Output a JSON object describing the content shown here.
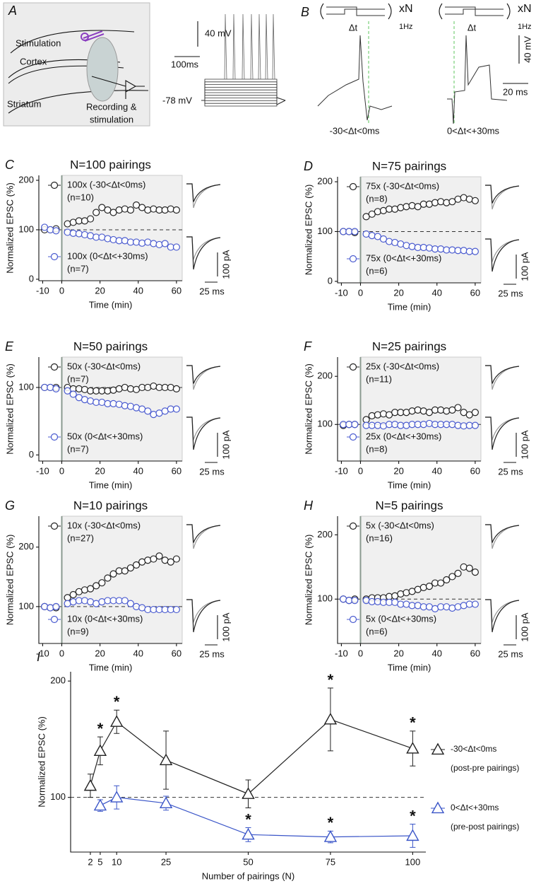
{
  "panel_a": {
    "label": "A",
    "stimulation": "Stimulation",
    "cortex": "Cortex",
    "striatum": "Striatum",
    "recording": "Recording &",
    "recording_2": "stimulation",
    "scale_mv": "40 mV",
    "scale_ms": "100ms",
    "rest": "-78 mV"
  },
  "panel_b": {
    "label": "B",
    "scale_mv": "40 mV",
    "scale_ms": "20 ms",
    "protocols": [
      {
        "repeat": "xN",
        "freq": "1Hz",
        "dt": "Δt",
        "window": "-30<Δt<0ms"
      },
      {
        "repeat": "xN",
        "freq": "1Hz",
        "dt": "Δt",
        "window": "0<Δt<+30ms"
      }
    ]
  },
  "chart_data": [
    {
      "type": "scatter",
      "panel": "C",
      "title": "N=100 pairings",
      "xlabel": "Time (min)",
      "ylabel": "Normalized EPSC (%)",
      "scale_labels": [
        "100 pA",
        "25 ms"
      ],
      "xlim": [
        -12,
        63
      ],
      "xticks": [
        -10,
        0,
        20,
        40,
        60
      ],
      "ylim": [
        -3,
        210
      ],
      "yticks": [
        0,
        100,
        200
      ],
      "baseline": 100,
      "x": [
        -9,
        -6,
        -3,
        3,
        6,
        9,
        12,
        15,
        18,
        21,
        24,
        27,
        30,
        33,
        36,
        39,
        42,
        45,
        48,
        51,
        54,
        57,
        60
      ],
      "series": [
        {
          "name": "100x (-30<Δt<0ms)",
          "n_label": "(n=10)",
          "color": "#222222",
          "values": [
            100,
            100,
            102,
            112,
            115,
            118,
            118,
            122,
            135,
            145,
            140,
            135,
            140,
            142,
            140,
            150,
            145,
            140,
            142,
            140,
            140,
            142,
            140
          ]
        },
        {
          "name": "100x (0<Δt<+30ms)",
          "n_label": "(n=7)",
          "color": "#4a5bd0",
          "values": [
            105,
            100,
            98,
            95,
            93,
            92,
            90,
            88,
            85,
            85,
            82,
            80,
            78,
            78,
            75,
            75,
            73,
            75,
            72,
            70,
            72,
            65,
            65
          ]
        }
      ]
    },
    {
      "type": "scatter",
      "panel": "D",
      "title": "N=75 pairings",
      "xlabel": "Time (min)",
      "ylabel": "Normalized EPSC (%)",
      "scale_labels": [
        "100 pA",
        "25 ms"
      ],
      "xlim": [
        -12,
        63
      ],
      "xticks": [
        -10,
        0,
        20,
        40,
        60
      ],
      "ylim": [
        -3,
        210
      ],
      "yticks": [
        0,
        100,
        200
      ],
      "baseline": 100,
      "x": [
        -9,
        -6,
        -3,
        3,
        6,
        9,
        12,
        15,
        18,
        21,
        24,
        27,
        30,
        33,
        36,
        39,
        42,
        45,
        48,
        51,
        54,
        57,
        60
      ],
      "series": [
        {
          "name": "75x (-30<Δt<0ms)",
          "n_label": "(n=8)",
          "color": "#222222",
          "values": [
            100,
            100,
            98,
            130,
            135,
            140,
            142,
            145,
            145,
            148,
            150,
            152,
            150,
            155,
            155,
            158,
            160,
            158,
            160,
            165,
            168,
            165,
            162
          ]
        },
        {
          "name": "75x (0<Δt<+30ms)",
          "n_label": "(n=6)",
          "color": "#4a5bd0",
          "values": [
            100,
            100,
            100,
            95,
            92,
            90,
            85,
            80,
            78,
            75,
            72,
            70,
            68,
            68,
            67,
            65,
            65,
            63,
            63,
            62,
            62,
            60,
            60
          ]
        }
      ]
    },
    {
      "type": "scatter",
      "panel": "E",
      "title": "N=50 pairings",
      "xlabel": "Time (min)",
      "ylabel": "Normalized EPSC (%)",
      "scale_labels": [
        "100 pA",
        "25 ms"
      ],
      "xlim": [
        -12,
        63
      ],
      "xticks": [
        -10,
        0,
        20,
        40,
        60
      ],
      "ylim": [
        -9,
        145
      ],
      "yticks": [
        0,
        100
      ],
      "baseline": 100,
      "x": [
        -9,
        -6,
        -3,
        3,
        6,
        9,
        12,
        15,
        18,
        21,
        24,
        27,
        30,
        33,
        36,
        39,
        42,
        45,
        48,
        51,
        54,
        57,
        60
      ],
      "series": [
        {
          "name": "50x (-30<Δt<0ms)",
          "n_label": "(n=7)",
          "color": "#222222",
          "values": [
            100,
            100,
            100,
            100,
            98,
            98,
            97,
            95,
            95,
            95,
            95,
            96,
            98,
            100,
            98,
            97,
            100,
            100,
            102,
            100,
            100,
            100,
            98
          ]
        },
        {
          "name": "50x (0<Δt<+30ms)",
          "n_label": "(n=7)",
          "color": "#4a5bd0",
          "values": [
            100,
            100,
            98,
            95,
            90,
            85,
            82,
            80,
            78,
            78,
            76,
            76,
            75,
            73,
            72,
            70,
            68,
            65,
            60,
            62,
            65,
            68,
            68
          ]
        }
      ]
    },
    {
      "type": "scatter",
      "panel": "F",
      "title": "N=25 pairings",
      "xlabel": "Time (min)",
      "ylabel": "Normalized EPSC (%)",
      "scale_labels": [
        "100 pA",
        "25 ms"
      ],
      "xlim": [
        -12,
        63
      ],
      "xticks": [
        -10,
        0,
        20,
        40,
        60
      ],
      "ylim": [
        24,
        240
      ],
      "yticks": [
        100,
        200
      ],
      "baseline": 100,
      "x": [
        -9,
        -6,
        -3,
        3,
        6,
        9,
        12,
        15,
        18,
        21,
        24,
        27,
        30,
        33,
        36,
        39,
        42,
        45,
        48,
        51,
        54,
        57,
        60
      ],
      "series": [
        {
          "name": "25x (-30<Δt<0ms)",
          "n_label": "(n=11)",
          "color": "#222222",
          "values": [
            98,
            100,
            100,
            110,
            118,
            120,
            122,
            120,
            125,
            125,
            125,
            128,
            130,
            128,
            125,
            130,
            130,
            128,
            130,
            135,
            125,
            120,
            125
          ]
        },
        {
          "name": "25x (0<Δt<+30ms)",
          "n_label": "(n=8)",
          "color": "#4a5bd0",
          "values": [
            100,
            100,
            100,
            98,
            98,
            98,
            97,
            100,
            100,
            98,
            98,
            100,
            100,
            100,
            102,
            100,
            100,
            100,
            100,
            98,
            97,
            98,
            98
          ]
        }
      ]
    },
    {
      "type": "scatter",
      "panel": "G",
      "title": "N=10 pairings",
      "xlabel": "Time (min)",
      "ylabel": "Normalized EPSC (%)",
      "scale_labels": [
        "100 pA",
        "25 ms"
      ],
      "xlim": [
        -12,
        63
      ],
      "xticks": [
        -10,
        0,
        20,
        40,
        60
      ],
      "ylim": [
        38,
        252
      ],
      "yticks": [
        100,
        200
      ],
      "baseline": 100,
      "x": [
        -9,
        -6,
        -3,
        3,
        6,
        9,
        12,
        15,
        18,
        21,
        24,
        27,
        30,
        33,
        36,
        39,
        42,
        45,
        48,
        51,
        54,
        57,
        60
      ],
      "series": [
        {
          "name": "10x (-30<Δt<0ms)",
          "n_label": "(n=27)",
          "color": "#222222",
          "values": [
            100,
            98,
            98,
            115,
            120,
            125,
            128,
            130,
            135,
            140,
            148,
            155,
            160,
            160,
            165,
            170,
            175,
            178,
            180,
            185,
            178,
            175,
            180
          ]
        },
        {
          "name": "10x (0<Δt<+30ms)",
          "n_label": "(n=9)",
          "color": "#4a5bd0",
          "values": [
            100,
            98,
            100,
            105,
            108,
            110,
            110,
            108,
            105,
            108,
            110,
            110,
            110,
            110,
            105,
            100,
            98,
            95,
            95,
            95,
            95,
            95,
            95
          ]
        }
      ]
    },
    {
      "type": "scatter",
      "panel": "H",
      "title": "N=5 pairings",
      "xlabel": "Time (min)",
      "ylabel": "Normalized EPSC (%)",
      "scale_labels": [
        "100 pA",
        "25 ms"
      ],
      "xlim": [
        -12,
        63
      ],
      "xticks": [
        -10,
        0,
        20,
        40,
        60
      ],
      "ylim": [
        31,
        229
      ],
      "yticks": [
        100,
        200
      ],
      "baseline": 100,
      "x": [
        -9,
        -6,
        -3,
        3,
        6,
        9,
        12,
        15,
        18,
        21,
        24,
        27,
        30,
        33,
        36,
        39,
        42,
        45,
        48,
        51,
        54,
        57,
        60
      ],
      "series": [
        {
          "name": "5x (-30<Δt<0ms)",
          "n_label": "(n=16)",
          "color": "#222222",
          "values": [
            100,
            98,
            100,
            100,
            102,
            102,
            102,
            104,
            105,
            108,
            110,
            112,
            115,
            118,
            120,
            125,
            125,
            130,
            135,
            140,
            150,
            148,
            142
          ]
        },
        {
          "name": "5x (0<Δt<+30ms)",
          "n_label": "(n=6)",
          "color": "#4a5bd0",
          "values": [
            100,
            98,
            98,
            98,
            96,
            96,
            95,
            95,
            95,
            92,
            92,
            90,
            90,
            88,
            88,
            85,
            88,
            88,
            86,
            88,
            90,
            92,
            92
          ]
        }
      ]
    },
    {
      "type": "line",
      "panel": "I",
      "xlabel": "Number of pairings (N)",
      "ylabel": "Normalized EPSC (%)",
      "xlim": [
        -4,
        104
      ],
      "xticks": [
        2,
        5,
        10,
        25,
        50,
        75,
        100
      ],
      "ylim": [
        53,
        208
      ],
      "yticks": [
        100,
        200
      ],
      "baseline": 100,
      "star_label": "*",
      "x": [
        2,
        5,
        10,
        25,
        50,
        75,
        100
      ],
      "series": [
        {
          "name": "-30<Δt<0ms",
          "note": "(post-pre pairings)",
          "color": "#222222",
          "values": [
            110,
            140,
            165,
            132,
            103,
            167,
            142
          ],
          "errors": [
            10,
            12,
            10,
            25,
            12,
            27,
            15
          ],
          "significant": [
            false,
            true,
            true,
            false,
            false,
            true,
            true
          ]
        },
        {
          "name": "0<Δt<+30ms",
          "note": "(pre-post pairings)",
          "color": "#3a55c8",
          "values": [
            null,
            93,
            100,
            95,
            68,
            66,
            67
          ],
          "errors": [
            null,
            5,
            10,
            6,
            6,
            5,
            10
          ],
          "significant": [
            false,
            false,
            false,
            false,
            true,
            true,
            true
          ]
        }
      ]
    }
  ]
}
